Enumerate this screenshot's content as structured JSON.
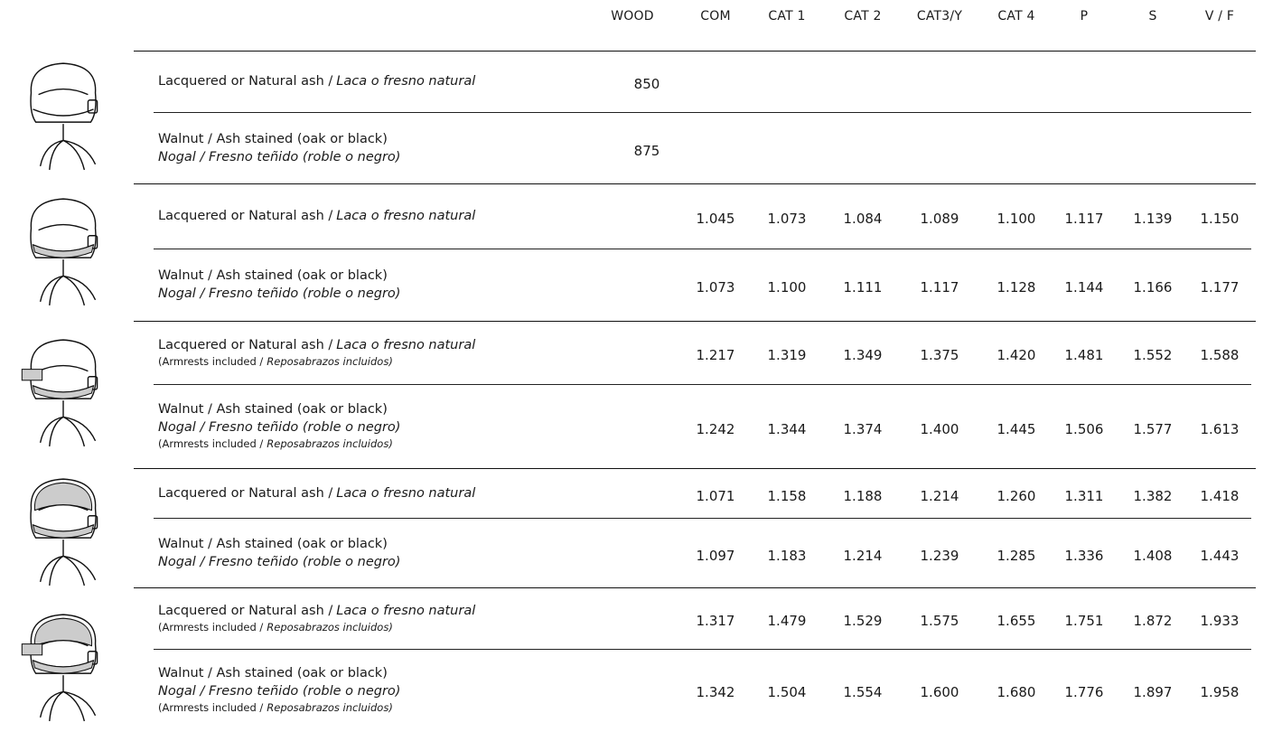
{
  "header": {
    "columns": [
      "WOOD",
      "COM",
      "CAT 1",
      "CAT 2",
      "CAT3/Y",
      "CAT 4",
      "P",
      "S",
      "V / F"
    ]
  },
  "groups": [
    {
      "rows": [
        {
          "description": {
            "en": "Lacquered or Natural ash /",
            "es": "Laca o fresno natural"
          },
          "wood": "850"
        },
        {
          "description": {
            "line1": "Walnut / Ash stained (oak or black)",
            "line2": "Nogal / Fresno teñido (roble  o negro)"
          },
          "wood": "875"
        }
      ]
    },
    {
      "rows": [
        {
          "description": {
            "en": "Lacquered or Natural ash /",
            "es": "Laca o fresno natural"
          },
          "prices": [
            "1.045",
            "1.073",
            "1.084",
            "1.089",
            "1.100",
            "1.117",
            "1.139",
            "1.150"
          ]
        },
        {
          "description": {
            "line1": "Walnut / Ash stained (oak or black)",
            "line2": "Nogal / Fresno teñido (roble  o negro)"
          },
          "prices": [
            "1.073",
            "1.100",
            "1.111",
            "1.117",
            "1.128",
            "1.144",
            "1.166",
            "1.177"
          ]
        }
      ]
    },
    {
      "rows": [
        {
          "description": {
            "en": "Lacquered or Natural ash /",
            "es": "Laca o fresno natural",
            "note": {
              "en": "(Armrests included /",
              "es": "Reposabrazos incluidos)"
            }
          },
          "prices": [
            "1.217",
            "1.319",
            "1.349",
            "1.375",
            "1.420",
            "1.481",
            "1.552",
            "1.588"
          ]
        },
        {
          "description": {
            "line1": "Walnut / Ash stained (oak or black)",
            "line2": "Nogal / Fresno teñido (roble  o negro)",
            "note": {
              "en": "(Armrests included /",
              "es": "Reposabrazos incluidos)"
            }
          },
          "prices": [
            "1.242",
            "1.344",
            "1.374",
            "1.400",
            "1.445",
            "1.506",
            "1.577",
            "1.613"
          ]
        }
      ]
    },
    {
      "rows": [
        {
          "description": {
            "en": "Lacquered or Natural ash /",
            "es": "Laca o fresno natural"
          },
          "prices": [
            "1.071",
            "1.158",
            "1.188",
            "1.214",
            "1.260",
            "1.311",
            "1.382",
            "1.418"
          ]
        },
        {
          "description": {
            "line1": "Walnut / Ash stained (oak or black)",
            "line2": "Nogal / Fresno teñido (roble  o negro)"
          },
          "prices": [
            "1.097",
            "1.183",
            "1.214",
            "1.239",
            "1.285",
            "1.336",
            "1.408",
            "1.443"
          ]
        }
      ]
    },
    {
      "rows": [
        {
          "description": {
            "en": "Lacquered or Natural ash /",
            "es": "Laca o fresno natural",
            "note": {
              "en": "(Armrests included /",
              "es": "Reposabrazos incluidos)"
            }
          },
          "prices": [
            "1.317",
            "1.479",
            "1.529",
            "1.575",
            "1.655",
            "1.751",
            "1.872",
            "1.933"
          ]
        },
        {
          "description": {
            "line1": "Walnut / Ash stained (oak or black)",
            "line2": "Nogal / Fresno teñido (roble  o negro)",
            "note": {
              "en": "(Armrests included /",
              "es": "Reposabrazos incluidos)"
            }
          },
          "prices": [
            "1.342",
            "1.504",
            "1.554",
            "1.600",
            "1.680",
            "1.776",
            "1.897",
            "1.958"
          ]
        }
      ]
    }
  ]
}
